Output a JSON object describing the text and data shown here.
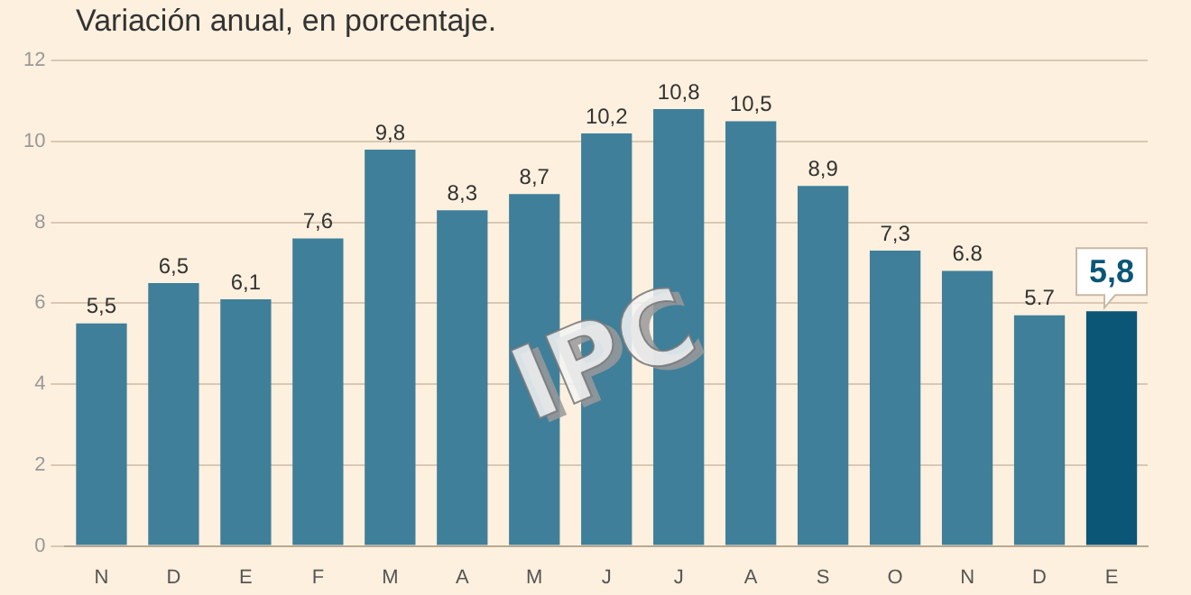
{
  "chart_data": {
    "type": "bar",
    "title": "Variación anual, en porcentaje.",
    "categories": [
      "N",
      "D",
      "E",
      "F",
      "M",
      "A",
      "M",
      "J",
      "J",
      "A",
      "S",
      "O",
      "N",
      "D",
      "E"
    ],
    "values": [
      5.5,
      6.5,
      6.1,
      7.6,
      9.8,
      8.3,
      8.7,
      10.2,
      10.8,
      10.5,
      8.9,
      7.3,
      6.8,
      5.7,
      5.8
    ],
    "colors": [
      "#3f7f9a",
      "#3f7f9a",
      "#3f7f9a",
      "#3f7f9a",
      "#3f7f9a",
      "#3f7f9a",
      "#3f7f9a",
      "#3f7f9a",
      "#3f7f9a",
      "#3f7f9a",
      "#3f7f9a",
      "#3f7f9a",
      "#3f7f9a",
      "#3f7f9a",
      "#0b5677"
    ],
    "value_labels": [
      "5,5",
      "6,5",
      "6,1",
      "7,6",
      "9,8",
      "8,3",
      "8,7",
      "10,2",
      "10,8",
      "10,5",
      "8,9",
      "7,3",
      "6.8",
      "5.7",
      "5,8"
    ],
    "ylim": [
      0,
      12
    ],
    "yticks": [
      0,
      2,
      4,
      6,
      8,
      10,
      12
    ],
    "grid": "y",
    "legend": false,
    "annotations": [
      "IPC"
    ]
  }
}
